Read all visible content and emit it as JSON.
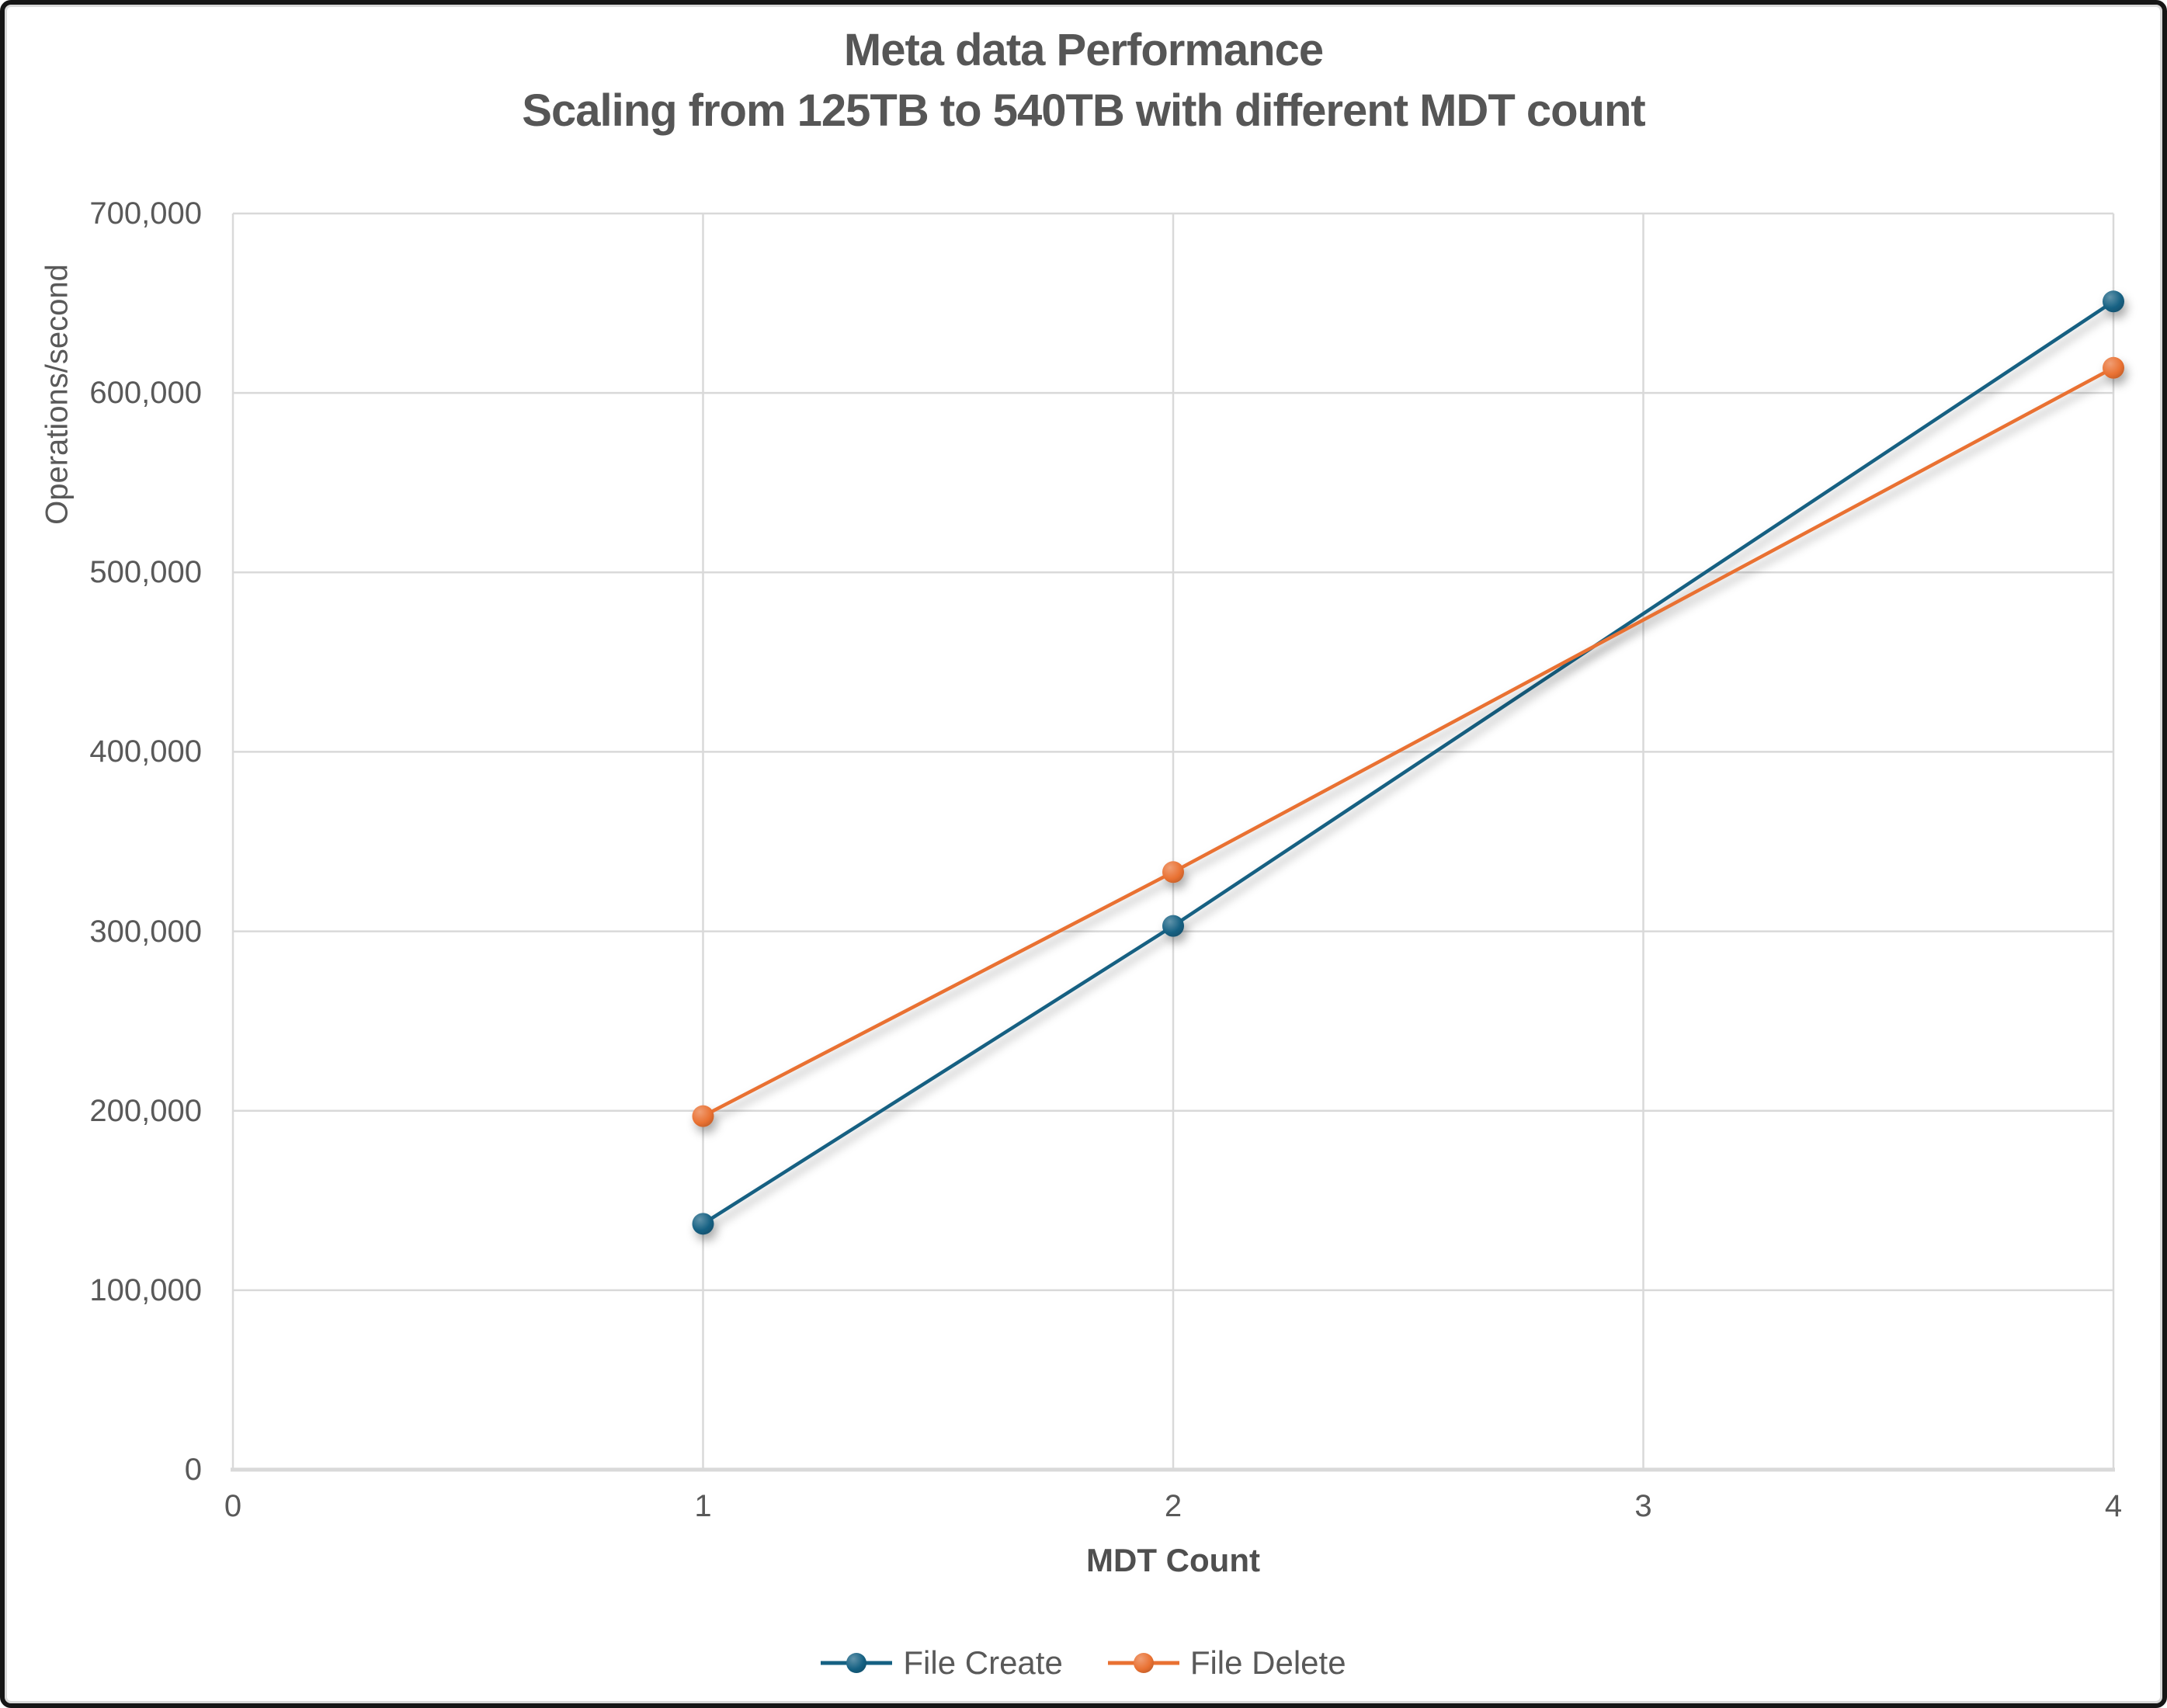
{
  "title": {
    "line1": "Meta data Performance",
    "line2": "Scaling from 125TB to 540TB with different MDT count"
  },
  "axes": {
    "y_title": "Operations/second",
    "x_title": "MDT Count",
    "y_ticks": [
      {
        "value": 0,
        "label": "0"
      },
      {
        "value": 100000,
        "label": "100,000"
      },
      {
        "value": 200000,
        "label": "200,000"
      },
      {
        "value": 300000,
        "label": "300,000"
      },
      {
        "value": 400000,
        "label": "400,000"
      },
      {
        "value": 500000,
        "label": "500,000"
      },
      {
        "value": 600000,
        "label": "600,000"
      },
      {
        "value": 700000,
        "label": "700,000"
      }
    ],
    "x_ticks": [
      {
        "value": 0,
        "label": "0"
      },
      {
        "value": 1,
        "label": "1"
      },
      {
        "value": 2,
        "label": "2"
      },
      {
        "value": 3,
        "label": "3"
      },
      {
        "value": 4,
        "label": "4"
      }
    ]
  },
  "colors": {
    "gridline": "#d9d9d9",
    "axis_line": "#d9d9d9",
    "label_text": "#595959",
    "title_text": "#565656",
    "series_file_create": "#156082",
    "series_file_delete": "#e97132"
  },
  "legend": [
    {
      "label": "File Create",
      "color": "#156082"
    },
    {
      "label": "File Delete",
      "color": "#e97132"
    }
  ],
  "chart_data": {
    "type": "line",
    "title": "Meta data Performance",
    "subtitle": "Scaling from 125TB to 540TB with different MDT count",
    "xlabel": "MDT Count",
    "ylabel": "Operations/second",
    "x": [
      1,
      2,
      4
    ],
    "series": [
      {
        "name": "File Create",
        "color": "#156082",
        "values": [
          137000,
          303000,
          651000
        ]
      },
      {
        "name": "File Delete",
        "color": "#e97132",
        "values": [
          197000,
          333000,
          614000
        ]
      }
    ],
    "xlim": [
      0,
      4
    ],
    "ylim": [
      0,
      700000
    ],
    "x_major": 1,
    "y_major": 100000,
    "grid": true,
    "legend_position": "bottom"
  }
}
